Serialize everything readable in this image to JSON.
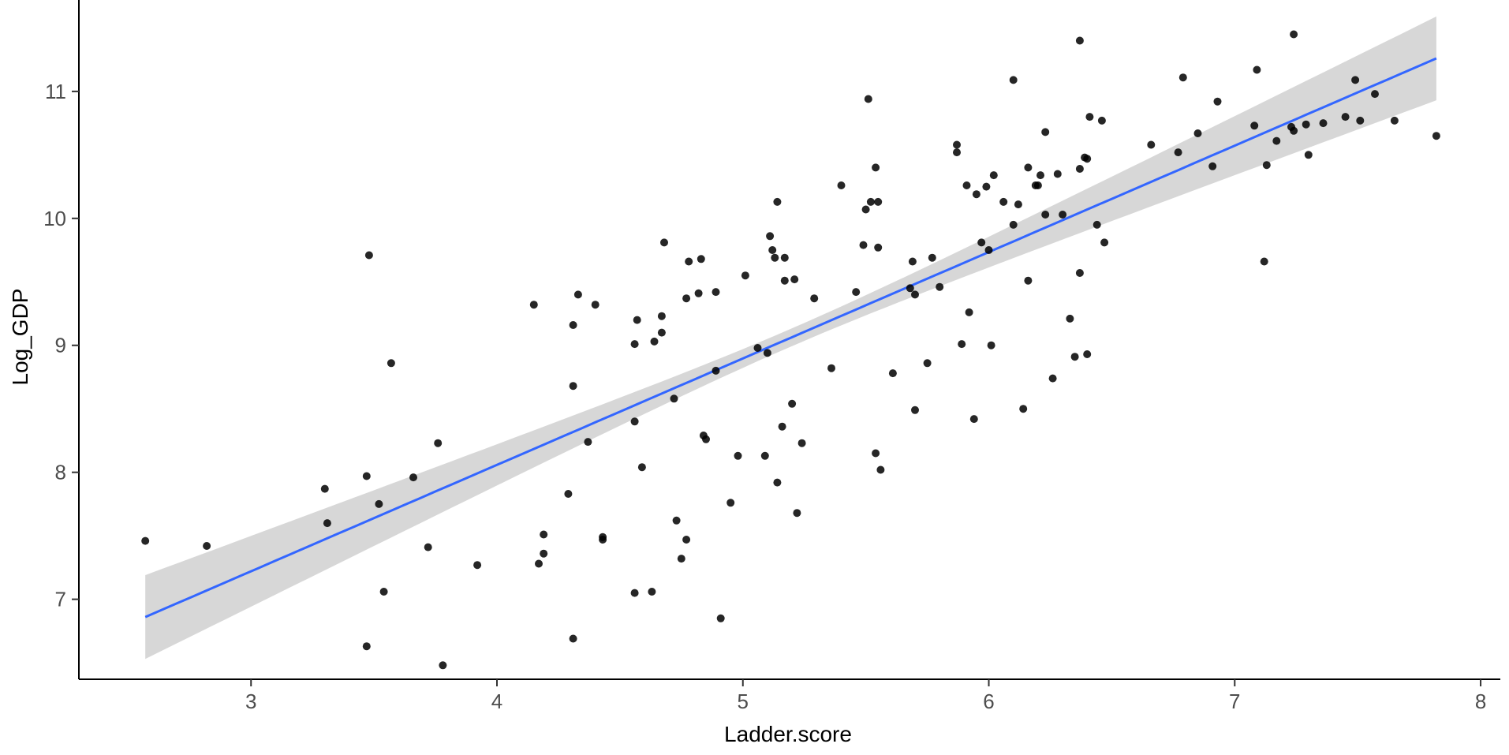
{
  "chart_data": {
    "type": "scatter",
    "title": "",
    "xlabel": "Ladder.score",
    "ylabel": "Log_GDP",
    "xlim": [
      2.3,
      8.08
    ],
    "ylim": [
      6.37,
      11.72
    ],
    "x_ticks": [
      3,
      4,
      5,
      6,
      7,
      8
    ],
    "y_ticks": [
      7,
      8,
      9,
      10,
      11
    ],
    "grid": false,
    "legend": "none",
    "colors": {
      "points": "#000000",
      "fit_line": "#3366FF",
      "ribbon": "#D3D3D3",
      "axis": "#000000",
      "tick_text": "#4D4D4D"
    },
    "fit": {
      "type": "linear",
      "x_range": [
        2.57,
        7.82
      ],
      "y_at_start": 6.86,
      "y_at_end": 11.26,
      "ci_halfwidth_edge": 0.33,
      "ci_halfwidth_center": 0.07
    },
    "points": [
      {
        "x": 2.57,
        "y": 7.46
      },
      {
        "x": 2.82,
        "y": 7.42
      },
      {
        "x": 3.3,
        "y": 7.87
      },
      {
        "x": 3.31,
        "y": 7.6
      },
      {
        "x": 3.47,
        "y": 7.97
      },
      {
        "x": 3.48,
        "y": 9.71
      },
      {
        "x": 3.47,
        "y": 6.63
      },
      {
        "x": 3.52,
        "y": 7.75
      },
      {
        "x": 3.54,
        "y": 7.06
      },
      {
        "x": 3.57,
        "y": 8.86
      },
      {
        "x": 3.66,
        "y": 7.96
      },
      {
        "x": 3.72,
        "y": 7.41
      },
      {
        "x": 3.76,
        "y": 8.23
      },
      {
        "x": 3.78,
        "y": 6.48
      },
      {
        "x": 3.92,
        "y": 7.27
      },
      {
        "x": 4.15,
        "y": 9.32
      },
      {
        "x": 4.17,
        "y": 7.28
      },
      {
        "x": 4.19,
        "y": 7.51
      },
      {
        "x": 4.19,
        "y": 7.36
      },
      {
        "x": 4.29,
        "y": 7.83
      },
      {
        "x": 4.31,
        "y": 9.16
      },
      {
        "x": 4.31,
        "y": 8.68
      },
      {
        "x": 4.31,
        "y": 6.69
      },
      {
        "x": 4.33,
        "y": 9.4
      },
      {
        "x": 4.37,
        "y": 8.24
      },
      {
        "x": 4.4,
        "y": 9.32
      },
      {
        "x": 4.43,
        "y": 7.49
      },
      {
        "x": 4.43,
        "y": 7.47
      },
      {
        "x": 4.56,
        "y": 9.01
      },
      {
        "x": 4.56,
        "y": 8.4
      },
      {
        "x": 4.56,
        "y": 7.05
      },
      {
        "x": 4.57,
        "y": 9.2
      },
      {
        "x": 4.59,
        "y": 8.04
      },
      {
        "x": 4.63,
        "y": 7.06
      },
      {
        "x": 4.64,
        "y": 9.03
      },
      {
        "x": 4.67,
        "y": 9.1
      },
      {
        "x": 4.67,
        "y": 9.23
      },
      {
        "x": 4.68,
        "y": 9.81
      },
      {
        "x": 4.72,
        "y": 8.58
      },
      {
        "x": 4.73,
        "y": 7.62
      },
      {
        "x": 4.75,
        "y": 7.32
      },
      {
        "x": 4.77,
        "y": 7.47
      },
      {
        "x": 4.77,
        "y": 9.37
      },
      {
        "x": 4.78,
        "y": 9.66
      },
      {
        "x": 4.82,
        "y": 9.41
      },
      {
        "x": 4.83,
        "y": 9.68
      },
      {
        "x": 4.84,
        "y": 8.29
      },
      {
        "x": 4.85,
        "y": 8.26
      },
      {
        "x": 4.89,
        "y": 9.42
      },
      {
        "x": 4.89,
        "y": 8.8
      },
      {
        "x": 4.91,
        "y": 6.85
      },
      {
        "x": 4.95,
        "y": 7.76
      },
      {
        "x": 4.98,
        "y": 8.13
      },
      {
        "x": 5.01,
        "y": 9.55
      },
      {
        "x": 5.06,
        "y": 8.98
      },
      {
        "x": 5.09,
        "y": 8.13
      },
      {
        "x": 5.1,
        "y": 8.94
      },
      {
        "x": 5.11,
        "y": 9.86
      },
      {
        "x": 5.12,
        "y": 9.75
      },
      {
        "x": 5.13,
        "y": 9.69
      },
      {
        "x": 5.14,
        "y": 7.92
      },
      {
        "x": 5.14,
        "y": 10.13
      },
      {
        "x": 5.16,
        "y": 8.36
      },
      {
        "x": 5.17,
        "y": 9.69
      },
      {
        "x": 5.17,
        "y": 9.51
      },
      {
        "x": 5.2,
        "y": 8.54
      },
      {
        "x": 5.21,
        "y": 9.52
      },
      {
        "x": 5.22,
        "y": 7.68
      },
      {
        "x": 5.24,
        "y": 8.23
      },
      {
        "x": 5.29,
        "y": 9.37
      },
      {
        "x": 5.36,
        "y": 8.82
      },
      {
        "x": 5.4,
        "y": 10.26
      },
      {
        "x": 5.46,
        "y": 9.42
      },
      {
        "x": 5.49,
        "y": 9.79
      },
      {
        "x": 5.5,
        "y": 10.07
      },
      {
        "x": 5.51,
        "y": 10.94
      },
      {
        "x": 5.52,
        "y": 10.13
      },
      {
        "x": 5.54,
        "y": 10.4
      },
      {
        "x": 5.54,
        "y": 8.15
      },
      {
        "x": 5.55,
        "y": 10.13
      },
      {
        "x": 5.55,
        "y": 9.77
      },
      {
        "x": 5.56,
        "y": 8.02
      },
      {
        "x": 5.61,
        "y": 8.78
      },
      {
        "x": 5.68,
        "y": 9.45
      },
      {
        "x": 5.69,
        "y": 9.66
      },
      {
        "x": 5.7,
        "y": 9.4
      },
      {
        "x": 5.7,
        "y": 8.49
      },
      {
        "x": 5.75,
        "y": 8.86
      },
      {
        "x": 5.77,
        "y": 9.69
      },
      {
        "x": 5.8,
        "y": 9.46
      },
      {
        "x": 5.87,
        "y": 10.58
      },
      {
        "x": 5.87,
        "y": 10.52
      },
      {
        "x": 5.89,
        "y": 9.01
      },
      {
        "x": 5.91,
        "y": 10.26
      },
      {
        "x": 5.92,
        "y": 9.26
      },
      {
        "x": 5.94,
        "y": 8.42
      },
      {
        "x": 5.95,
        "y": 10.19
      },
      {
        "x": 5.97,
        "y": 9.81
      },
      {
        "x": 5.99,
        "y": 10.25
      },
      {
        "x": 6.0,
        "y": 9.75
      },
      {
        "x": 6.01,
        "y": 9.0
      },
      {
        "x": 6.02,
        "y": 10.34
      },
      {
        "x": 6.06,
        "y": 10.13
      },
      {
        "x": 6.1,
        "y": 9.95
      },
      {
        "x": 6.1,
        "y": 11.09
      },
      {
        "x": 6.12,
        "y": 10.11
      },
      {
        "x": 6.14,
        "y": 8.5
      },
      {
        "x": 6.16,
        "y": 10.4
      },
      {
        "x": 6.16,
        "y": 9.51
      },
      {
        "x": 6.19,
        "y": 10.26
      },
      {
        "x": 6.2,
        "y": 10.26
      },
      {
        "x": 6.21,
        "y": 10.34
      },
      {
        "x": 6.23,
        "y": 10.68
      },
      {
        "x": 6.23,
        "y": 10.03
      },
      {
        "x": 6.26,
        "y": 8.74
      },
      {
        "x": 6.28,
        "y": 10.35
      },
      {
        "x": 6.3,
        "y": 10.03
      },
      {
        "x": 6.33,
        "y": 9.21
      },
      {
        "x": 6.35,
        "y": 8.91
      },
      {
        "x": 6.37,
        "y": 9.57
      },
      {
        "x": 6.37,
        "y": 10.39
      },
      {
        "x": 6.37,
        "y": 11.4
      },
      {
        "x": 6.39,
        "y": 10.48
      },
      {
        "x": 6.4,
        "y": 10.47
      },
      {
        "x": 6.4,
        "y": 8.93
      },
      {
        "x": 6.41,
        "y": 10.8
      },
      {
        "x": 6.44,
        "y": 9.95
      },
      {
        "x": 6.46,
        "y": 10.77
      },
      {
        "x": 6.47,
        "y": 9.81
      },
      {
        "x": 6.66,
        "y": 10.58
      },
      {
        "x": 6.77,
        "y": 10.52
      },
      {
        "x": 6.79,
        "y": 11.11
      },
      {
        "x": 6.85,
        "y": 10.67
      },
      {
        "x": 6.91,
        "y": 10.41
      },
      {
        "x": 6.93,
        "y": 10.92
      },
      {
        "x": 7.08,
        "y": 10.73
      },
      {
        "x": 7.09,
        "y": 11.17
      },
      {
        "x": 7.12,
        "y": 9.66
      },
      {
        "x": 7.13,
        "y": 10.42
      },
      {
        "x": 7.17,
        "y": 10.61
      },
      {
        "x": 7.23,
        "y": 10.72
      },
      {
        "x": 7.24,
        "y": 10.69
      },
      {
        "x": 7.24,
        "y": 11.45
      },
      {
        "x": 7.29,
        "y": 10.74
      },
      {
        "x": 7.3,
        "y": 10.5
      },
      {
        "x": 7.36,
        "y": 10.75
      },
      {
        "x": 7.45,
        "y": 10.8
      },
      {
        "x": 7.49,
        "y": 11.09
      },
      {
        "x": 7.51,
        "y": 10.77
      },
      {
        "x": 7.57,
        "y": 10.98
      },
      {
        "x": 7.65,
        "y": 10.77
      },
      {
        "x": 7.82,
        "y": 10.65
      }
    ]
  }
}
